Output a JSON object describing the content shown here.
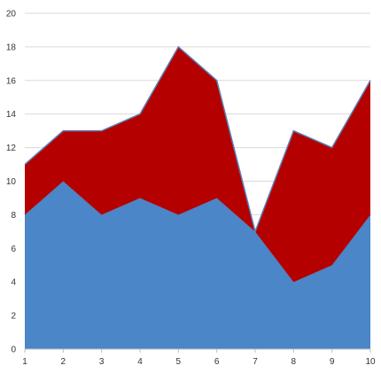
{
  "chart_data": {
    "type": "area",
    "stacked": true,
    "x": [
      1,
      2,
      3,
      4,
      5,
      6,
      7,
      8,
      9,
      10
    ],
    "series": [
      {
        "values": [
          8,
          10,
          8,
          9,
          8,
          9,
          7,
          4,
          5,
          8
        ],
        "color": "#4a86c8"
      },
      {
        "values": [
          3,
          3,
          5,
          5,
          10,
          7,
          0,
          9,
          7,
          8
        ],
        "color": "#b50000"
      }
    ],
    "ylim": [
      0,
      20
    ],
    "y_ticks": [
      "0",
      "2",
      "4",
      "6",
      "8",
      "10",
      "12",
      "14",
      "16",
      "18",
      "20"
    ],
    "x_ticks": [
      "1",
      "2",
      "3",
      "4",
      "5",
      "6",
      "7",
      "8",
      "9",
      "10"
    ],
    "grid": "horizontal",
    "legend": "none",
    "line_color": "#5b7fb5"
  }
}
